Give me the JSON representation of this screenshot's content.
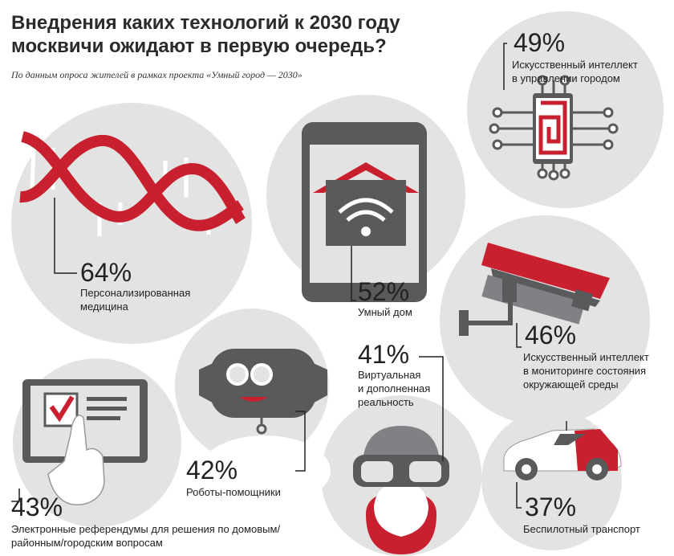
{
  "title": "Внедрения каких технологий к 2030 году москвичи ожидают в первую очередь?",
  "subtitle": "По данным опроса жителей в рамках проекта «Умный город — 2030»",
  "colors": {
    "accent": "#c8202f",
    "circle": "#e3e3e3",
    "device": "#595a5c"
  },
  "items": [
    {
      "percent": "64%",
      "label_lines": [
        "Персонализированная",
        "медицина"
      ],
      "icon": "dna-icon"
    },
    {
      "percent": "52%",
      "label_lines": [
        "Умный дом"
      ],
      "icon": "smart-home-phone-icon"
    },
    {
      "percent": "49%",
      "label_lines": [
        "Искусственный интеллект",
        "в управлении городом"
      ],
      "icon": "ai-chip-icon"
    },
    {
      "percent": "46%",
      "label_lines": [
        "Искусственный интеллект",
        "в мониторинге состояния",
        "окружающей среды"
      ],
      "icon": "security-camera-icon"
    },
    {
      "percent": "43%",
      "label_lines": [
        "Электронные референдумы для решения по домовым/",
        "районным/городским вопросам"
      ],
      "icon": "tablet-vote-icon"
    },
    {
      "percent": "42%",
      "label_lines": [
        "Роботы-помощники"
      ],
      "icon": "robot-icon"
    },
    {
      "percent": "41%",
      "label_lines": [
        "Виртуальная",
        "и дополненная",
        "реальность"
      ],
      "icon": "vr-headset-icon"
    },
    {
      "percent": "37%",
      "label_lines": [
        "Беспилотный транспорт"
      ],
      "icon": "self-driving-car-icon"
    }
  ]
}
